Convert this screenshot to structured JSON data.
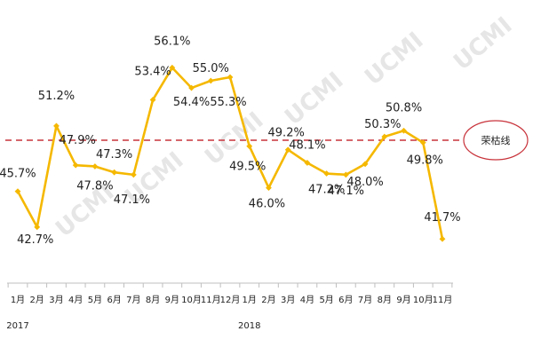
{
  "chart_data": {
    "type": "line",
    "categories": [
      "1月",
      "2月",
      "3月",
      "4月",
      "5月",
      "6月",
      "7月",
      "8月",
      "9月",
      "10月",
      "11月",
      "12月",
      "1月",
      "2月",
      "3月",
      "4月",
      "5月",
      "6月",
      "7月",
      "8月",
      "9月",
      "10月",
      "11月"
    ],
    "years": [
      "2017",
      "2018"
    ],
    "series": [
      {
        "values": [
          45.7,
          42.7,
          51.2,
          47.9,
          47.8,
          47.3,
          47.1,
          53.4,
          56.1,
          54.4,
          55.0,
          55.3,
          49.5,
          46.0,
          49.2,
          48.1,
          47.2,
          47.1,
          48.0,
          50.3,
          50.8,
          49.8,
          41.7
        ],
        "labels": [
          "45.7%",
          "42.7%",
          "51.2%",
          "47.9%",
          "47.8%",
          "47.3%",
          "47.1%",
          "53.4%",
          "56.1%",
          "54.4%",
          "55.0%",
          "55.3%",
          "49.5%",
          "46.0%",
          "49.2%",
          "48.1%",
          "47.2%",
          "47.1%",
          "48.0%",
          "50.3%",
          "50.8%",
          "49.8%",
          "41.7%"
        ],
        "color": "#f5b800"
      }
    ],
    "reference_line": {
      "value": 50,
      "label": "荣枯线",
      "color": "#c8333b"
    },
    "watermark": "UCMI",
    "ylim": [
      40,
      58
    ],
    "grid": false,
    "legend": "none"
  }
}
